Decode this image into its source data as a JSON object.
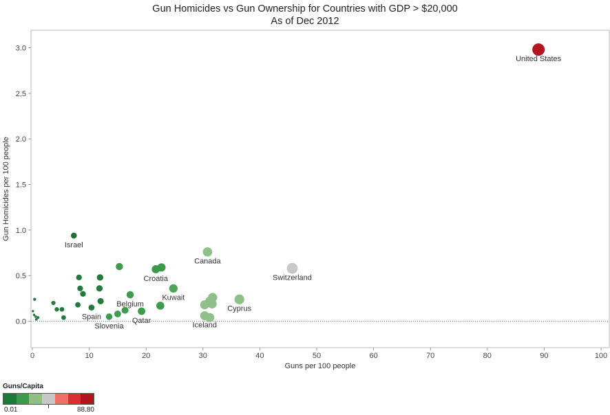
{
  "chart_data": {
    "type": "scatter",
    "title": "Gun Homicides vs Gun Ownership for Countries with GDP > $20,000",
    "subtitle": "As of Dec 2012",
    "xlabel": "Guns per 100 people",
    "ylabel": "Gun Homicides per 100 people",
    "xlim": [
      0,
      100
    ],
    "ylim": [
      -0.25,
      3.2
    ],
    "xticks": [
      "0",
      "10",
      "20",
      "30",
      "40",
      "50",
      "60",
      "70",
      "80",
      "90",
      "100"
    ],
    "yticks": [
      "0.0",
      "0.5",
      "1.0",
      "1.5",
      "2.0",
      "2.5",
      "3.0"
    ],
    "grid": false,
    "reference_line_y": 0,
    "color_scale": [
      "#1b7a3a",
      "#3d9a4d",
      "#8fbf84",
      "#c8c8c8",
      "#ef6f66",
      "#d92f2e",
      "#b0151e"
    ],
    "points": [
      {
        "x": 89,
        "y": 2.98,
        "color": "#b5131d",
        "label": "United States"
      },
      {
        "x": 7.3,
        "y": 0.94,
        "color": "#1f6e36",
        "label": "Israel"
      },
      {
        "x": 30.8,
        "y": 0.76,
        "color": "#8fc08a",
        "label": "Canada"
      },
      {
        "x": 45.7,
        "y": 0.58,
        "color": "#c8c8c8",
        "label": "Switzerland"
      },
      {
        "x": 22.7,
        "y": 0.59,
        "color": "#3c9a4c",
        "label": ""
      },
      {
        "x": 21.7,
        "y": 0.57,
        "color": "#3c9a4c",
        "label": "Croatia"
      },
      {
        "x": 15.3,
        "y": 0.6,
        "color": "#3f9b4d",
        "label": ""
      },
      {
        "x": 8.2,
        "y": 0.48,
        "color": "#237a3a",
        "label": ""
      },
      {
        "x": 11.9,
        "y": 0.48,
        "color": "#237a3a",
        "label": ""
      },
      {
        "x": 8.4,
        "y": 0.36,
        "color": "#237a3a",
        "label": ""
      },
      {
        "x": 11.8,
        "y": 0.36,
        "color": "#237a3a",
        "label": ""
      },
      {
        "x": 8.9,
        "y": 0.3,
        "color": "#237a3a",
        "label": ""
      },
      {
        "x": 24.8,
        "y": 0.36,
        "color": "#4ea45a",
        "label": "Kuwait"
      },
      {
        "x": 17.2,
        "y": 0.29,
        "color": "#3f9b4d",
        "label": "Belgium"
      },
      {
        "x": 0.4,
        "y": 0.24,
        "color": "#237a3a",
        "label": ""
      },
      {
        "x": 3.7,
        "y": 0.2,
        "color": "#237a3a",
        "label": ""
      },
      {
        "x": 12,
        "y": 0.22,
        "color": "#237a3a",
        "label": ""
      },
      {
        "x": 8,
        "y": 0.18,
        "color": "#237a3a",
        "label": ""
      },
      {
        "x": 10.4,
        "y": 0.15,
        "color": "#237a3a",
        "label": "Spain"
      },
      {
        "x": 4.3,
        "y": 0.13,
        "color": "#237a3a",
        "label": ""
      },
      {
        "x": 5.2,
        "y": 0.13,
        "color": "#237a3a",
        "label": ""
      },
      {
        "x": 16.3,
        "y": 0.12,
        "color": "#3f9b4d",
        "label": ""
      },
      {
        "x": 19.2,
        "y": 0.11,
        "color": "#3f9b4d",
        "label": "Qatar"
      },
      {
        "x": 15,
        "y": 0.08,
        "color": "#3f9b4d",
        "label": ""
      },
      {
        "x": 13.5,
        "y": 0.05,
        "color": "#3f9b4d",
        "label": "Slovenia"
      },
      {
        "x": 22.5,
        "y": 0.17,
        "color": "#3f9b4d",
        "label": ""
      },
      {
        "x": 31.7,
        "y": 0.26,
        "color": "#8fc08a",
        "label": ""
      },
      {
        "x": 31.2,
        "y": 0.22,
        "color": "#8fc08a",
        "label": ""
      },
      {
        "x": 31.6,
        "y": 0.19,
        "color": "#8fc08a",
        "label": ""
      },
      {
        "x": 30.3,
        "y": 0.18,
        "color": "#8fc08a",
        "label": ""
      },
      {
        "x": 36.4,
        "y": 0.24,
        "color": "#8fc08a",
        "label": "Cyprus"
      },
      {
        "x": 30.3,
        "y": 0.06,
        "color": "#8fc08a",
        "label": "Iceland"
      },
      {
        "x": 31.2,
        "y": 0.04,
        "color": "#8fc08a",
        "label": ""
      },
      {
        "x": 0.1,
        "y": 0.11,
        "color": "#237a3a",
        "label": ""
      },
      {
        "x": 0.3,
        "y": 0.07,
        "color": "#237a3a",
        "label": ""
      },
      {
        "x": 0.6,
        "y": 0.05,
        "color": "#237a3a",
        "label": ""
      },
      {
        "x": 1.0,
        "y": 0.04,
        "color": "#237a3a",
        "label": ""
      },
      {
        "x": 0.7,
        "y": 0.02,
        "color": "#237a3a",
        "label": ""
      },
      {
        "x": 5.5,
        "y": 0.04,
        "color": "#237a3a",
        "label": ""
      }
    ]
  },
  "legend": {
    "title": "Guns/Capita",
    "min_label": "0.01",
    "max_label": "88.80"
  }
}
